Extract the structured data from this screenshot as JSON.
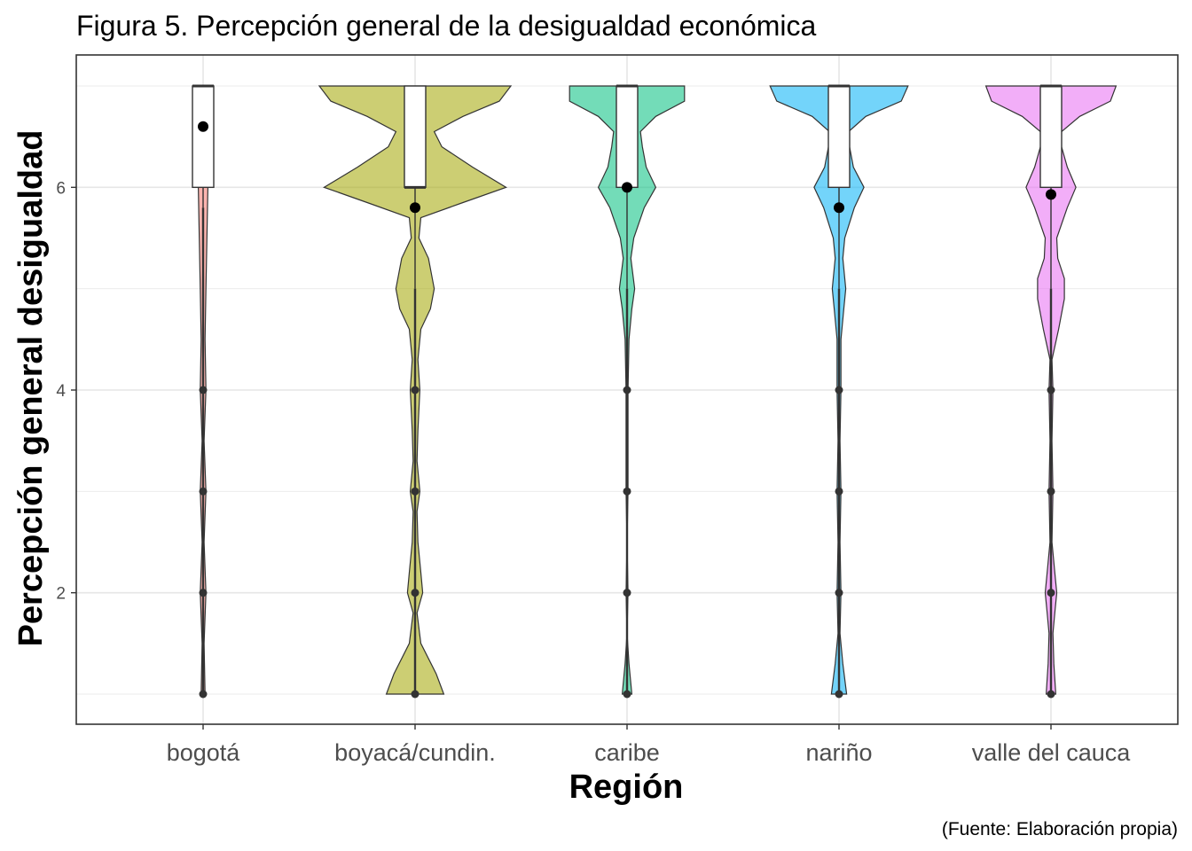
{
  "chart_data": {
    "type": "violin",
    "title": "Figura 5. Percepción general de la desigualdad económica",
    "caption": "(Fuente: Elaboración propia)",
    "xlabel": "Región",
    "ylabel": "Percepción general desigualdad",
    "ylim": [
      0.7,
      7.3
    ],
    "yticks": [
      2,
      4,
      6
    ],
    "grid": true,
    "categories": [
      "bogotá",
      "boyacá/cundin.",
      "caribe",
      "nariño",
      "valle del cauca"
    ],
    "series": [
      {
        "category": "bogotá",
        "color": "#F8766D",
        "density": [
          [
            1,
            0.02
          ],
          [
            1.5,
            0.01
          ],
          [
            2,
            0.03
          ],
          [
            2.5,
            0.01
          ],
          [
            3,
            0.03
          ],
          [
            3.5,
            0.01
          ],
          [
            4,
            0.03
          ],
          [
            4.5,
            0.02
          ],
          [
            5,
            0.03
          ],
          [
            5.5,
            0.04
          ],
          [
            6,
            0.05
          ],
          [
            6.5,
            0.05
          ],
          [
            7,
            0.06
          ]
        ],
        "box": {
          "q1": 6,
          "median": 7,
          "q3": 7,
          "whisker_low": 5.8,
          "whisker_high": 7
        },
        "mean": 6.6,
        "outliers": [
          1,
          2,
          3,
          4
        ]
      },
      {
        "category": "boyacá/cundin.",
        "color": "#A3A500",
        "density": [
          [
            1,
            0.3
          ],
          [
            1.2,
            0.22
          ],
          [
            1.5,
            0.06
          ],
          [
            1.8,
            0.02
          ],
          [
            2,
            0.08
          ],
          [
            2.2,
            0.06
          ],
          [
            2.5,
            0.03
          ],
          [
            2.8,
            0.02
          ],
          [
            3,
            0.05
          ],
          [
            3.3,
            0.02
          ],
          [
            3.6,
            0.03
          ],
          [
            4,
            0.05
          ],
          [
            4.3,
            0.03
          ],
          [
            4.6,
            0.06
          ],
          [
            4.8,
            0.16
          ],
          [
            5,
            0.2
          ],
          [
            5.3,
            0.14
          ],
          [
            5.5,
            0.04
          ],
          [
            5.7,
            0.06
          ],
          [
            5.85,
            0.5
          ],
          [
            6,
            0.95
          ],
          [
            6.2,
            0.6
          ],
          [
            6.4,
            0.28
          ],
          [
            6.55,
            0.2
          ],
          [
            6.7,
            0.5
          ],
          [
            6.85,
            0.88
          ],
          [
            7,
            1.0
          ]
        ],
        "box": {
          "q1": 6,
          "median": 6,
          "q3": 7,
          "whisker_low": 5,
          "whisker_high": 7
        },
        "mean": 5.8,
        "outliers": [
          1,
          2,
          3,
          4
        ]
      },
      {
        "category": "caribe",
        "color": "#00BF7D",
        "density": [
          [
            1,
            0.05
          ],
          [
            1.3,
            0.02
          ],
          [
            1.6,
            0.0
          ],
          [
            2,
            0.01
          ],
          [
            2.5,
            0.0
          ],
          [
            3,
            0.01
          ],
          [
            3.5,
            0.01
          ],
          [
            4,
            0.01
          ],
          [
            4.5,
            0.02
          ],
          [
            4.8,
            0.05
          ],
          [
            5,
            0.08
          ],
          [
            5.3,
            0.04
          ],
          [
            5.5,
            0.07
          ],
          [
            5.8,
            0.18
          ],
          [
            6,
            0.3
          ],
          [
            6.2,
            0.2
          ],
          [
            6.4,
            0.16
          ],
          [
            6.55,
            0.14
          ],
          [
            6.7,
            0.3
          ],
          [
            6.85,
            0.6
          ],
          [
            7,
            0.6
          ]
        ],
        "box": {
          "q1": 6,
          "median": 7,
          "q3": 7,
          "whisker_low": 5,
          "whisker_high": 7
        },
        "mean": 6.0,
        "outliers": [
          1,
          2,
          3,
          4
        ]
      },
      {
        "category": "nariño",
        "color": "#00B0F6",
        "density": [
          [
            1,
            0.08
          ],
          [
            1.3,
            0.04
          ],
          [
            1.6,
            0.01
          ],
          [
            2,
            0.02
          ],
          [
            2.5,
            0.01
          ],
          [
            3,
            0.02
          ],
          [
            3.5,
            0.01
          ],
          [
            4,
            0.02
          ],
          [
            4.5,
            0.02
          ],
          [
            4.8,
            0.05
          ],
          [
            5,
            0.07
          ],
          [
            5.3,
            0.04
          ],
          [
            5.5,
            0.06
          ],
          [
            5.8,
            0.16
          ],
          [
            6,
            0.26
          ],
          [
            6.2,
            0.15
          ],
          [
            6.4,
            0.11
          ],
          [
            6.55,
            0.1
          ],
          [
            6.7,
            0.28
          ],
          [
            6.85,
            0.65
          ],
          [
            7,
            0.72
          ]
        ],
        "box": {
          "q1": 6,
          "median": 7,
          "q3": 7,
          "whisker_low": 5,
          "whisker_high": 7
        },
        "mean": 5.8,
        "outliers": [
          1,
          2,
          3,
          4
        ]
      },
      {
        "category": "valle del cauca",
        "color": "#E76BF3",
        "density": [
          [
            1,
            0.05
          ],
          [
            1.3,
            0.03
          ],
          [
            1.6,
            0.02
          ],
          [
            1.8,
            0.04
          ],
          [
            2,
            0.06
          ],
          [
            2.2,
            0.04
          ],
          [
            2.5,
            0.01
          ],
          [
            3,
            0.02
          ],
          [
            3.5,
            0.01
          ],
          [
            4,
            0.02
          ],
          [
            4.3,
            0.01
          ],
          [
            4.6,
            0.08
          ],
          [
            4.9,
            0.14
          ],
          [
            5.1,
            0.14
          ],
          [
            5.3,
            0.07
          ],
          [
            5.5,
            0.06
          ],
          [
            5.8,
            0.17
          ],
          [
            6,
            0.26
          ],
          [
            6.2,
            0.17
          ],
          [
            6.4,
            0.11
          ],
          [
            6.55,
            0.11
          ],
          [
            6.7,
            0.3
          ],
          [
            6.85,
            0.62
          ],
          [
            7,
            0.68
          ]
        ],
        "box": {
          "q1": 6,
          "median": 7,
          "q3": 7,
          "whisker_low": 5,
          "whisker_high": 7
        },
        "mean": 5.93,
        "outliers": [
          1,
          2,
          3,
          4
        ]
      }
    ]
  }
}
